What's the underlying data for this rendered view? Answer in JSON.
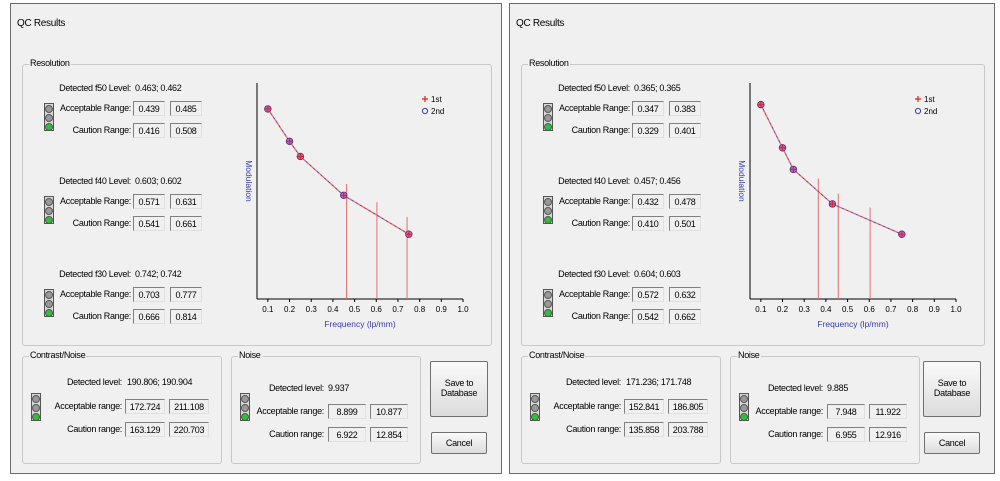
{
  "panels": [
    {
      "title": "QC Results",
      "resolution": {
        "label": "Resolution",
        "rows": [
          {
            "detected_label": "Detected f50 Level:",
            "detected_value": "0.463; 0.462",
            "acceptable_label": "Acceptable Range:",
            "acceptable_min": "0.439",
            "acceptable_max": "0.485",
            "caution_label": "Caution Range:",
            "caution_min": "0.416",
            "caution_max": "0.508"
          },
          {
            "detected_label": "Detected f40 Level:",
            "detected_value": "0.603; 0.602",
            "acceptable_label": "Acceptable Range:",
            "acceptable_min": "0.571",
            "acceptable_max": "0.631",
            "caution_label": "Caution Range:",
            "caution_min": "0.541",
            "caution_max": "0.661"
          },
          {
            "detected_label": "Detected f30 Level:",
            "detected_value": "0.742; 0.742",
            "acceptable_label": "Acceptable Range:",
            "acceptable_min": "0.703",
            "acceptable_max": "0.777",
            "caution_label": "Caution Range:",
            "caution_min": "0.666",
            "caution_max": "0.814"
          }
        ]
      },
      "contrast": {
        "label": "Contrast/Noise",
        "detected_label": "Detected level:",
        "detected_value": "190.806; 190.904",
        "acceptable_label": "Acceptable range:",
        "acceptable_min": "172.724",
        "acceptable_max": "211.108",
        "caution_label": "Caution range:",
        "caution_min": "163.129",
        "caution_max": "220.703"
      },
      "noise": {
        "label": "Noise",
        "detected_label": "Detected level:",
        "detected_value": "9.937",
        "acceptable_label": "Acceptable range:",
        "acceptable_min": "8.899",
        "acceptable_max": "10.877",
        "caution_label": "Caution range:",
        "caution_min": "6.922",
        "caution_max": "12.854"
      },
      "buttons": {
        "save": [
          "Save to",
          "Database"
        ],
        "cancel": "Cancel"
      },
      "chart_data": {
        "type": "line",
        "title": "",
        "xlabel": "Frequency (lp/mm)",
        "ylabel": "Modulation",
        "xticks": [
          "0.1",
          "0.2",
          "0.3",
          "0.4",
          "0.5",
          "0.6",
          "0.7",
          "0.8",
          "0.9",
          "1.0"
        ],
        "xlim": [
          0.05,
          1.0
        ],
        "ylim": [
          0,
          1
        ],
        "legend_position": "top-right",
        "series": [
          {
            "name": "1st",
            "color": "#e02020",
            "marker": "plus",
            "x": [
              0.1,
              0.2,
              0.25,
              0.45,
              0.75
            ],
            "y": [
              0.88,
              0.73,
              0.66,
              0.48,
              0.3
            ]
          },
          {
            "name": "2nd",
            "color": "#3a3ab0",
            "marker": "circle",
            "x": [
              0.1,
              0.2,
              0.25,
              0.45,
              0.75
            ],
            "y": [
              0.88,
              0.73,
              0.66,
              0.48,
              0.3
            ]
          }
        ],
        "vlines": [
          0.463,
          0.603,
          0.742
        ],
        "line_color": "#e07070"
      }
    },
    {
      "title": "QC Results",
      "resolution": {
        "label": "Resolution",
        "rows": [
          {
            "detected_label": "Detected f50 Level:",
            "detected_value": "0.365; 0.365",
            "acceptable_label": "Acceptable Range:",
            "acceptable_min": "0.347",
            "acceptable_max": "0.383",
            "caution_label": "Caution Range:",
            "caution_min": "0.329",
            "caution_max": "0.401"
          },
          {
            "detected_label": "Detected f40 Level:",
            "detected_value": "0.457; 0.456",
            "acceptable_label": "Acceptable Range:",
            "acceptable_min": "0.432",
            "acceptable_max": "0.478",
            "caution_label": "Caution Range:",
            "caution_min": "0.410",
            "caution_max": "0.501"
          },
          {
            "detected_label": "Detected f30 Level:",
            "detected_value": "0.604; 0.603",
            "acceptable_label": "Acceptable Range:",
            "acceptable_min": "0.572",
            "acceptable_max": "0.632",
            "caution_label": "Caution Range:",
            "caution_min": "0.542",
            "caution_max": "0.662"
          }
        ]
      },
      "contrast": {
        "label": "Contrast/Noise",
        "detected_label": "Detected level:",
        "detected_value": "171.236; 171.748",
        "acceptable_label": "Acceptable range:",
        "acceptable_min": "152.841",
        "acceptable_max": "186.805",
        "caution_label": "Caution range:",
        "caution_min": "135.858",
        "caution_max": "203.788"
      },
      "noise": {
        "label": "Noise",
        "detected_label": "Detected level:",
        "detected_value": "9.885",
        "acceptable_label": "Acceptable range:",
        "acceptable_min": "7.948",
        "acceptable_max": "11.922",
        "caution_label": "Caution range:",
        "caution_min": "6.955",
        "caution_max": "12.916"
      },
      "buttons": {
        "save": [
          "Save to",
          "Database"
        ],
        "cancel": "Cancel"
      },
      "chart_data": {
        "type": "line",
        "title": "",
        "xlabel": "Frequency (lp/mm)",
        "ylabel": "Modulation",
        "xticks": [
          "0.1",
          "0.2",
          "0.3",
          "0.4",
          "0.5",
          "0.6",
          "0.7",
          "0.8",
          "0.9",
          "1.0"
        ],
        "xlim": [
          0.05,
          1.0
        ],
        "ylim": [
          0,
          1
        ],
        "legend_position": "top-right",
        "series": [
          {
            "name": "1st",
            "color": "#e02020",
            "marker": "plus",
            "x": [
              0.1,
              0.2,
              0.25,
              0.43,
              0.75
            ],
            "y": [
              0.9,
              0.7,
              0.6,
              0.44,
              0.3
            ]
          },
          {
            "name": "2nd",
            "color": "#3a3ab0",
            "marker": "circle",
            "x": [
              0.1,
              0.2,
              0.25,
              0.43,
              0.75
            ],
            "y": [
              0.9,
              0.7,
              0.6,
              0.44,
              0.3
            ]
          }
        ],
        "vlines": [
          0.365,
          0.457,
          0.604
        ],
        "line_color": "#e07070"
      }
    }
  ]
}
